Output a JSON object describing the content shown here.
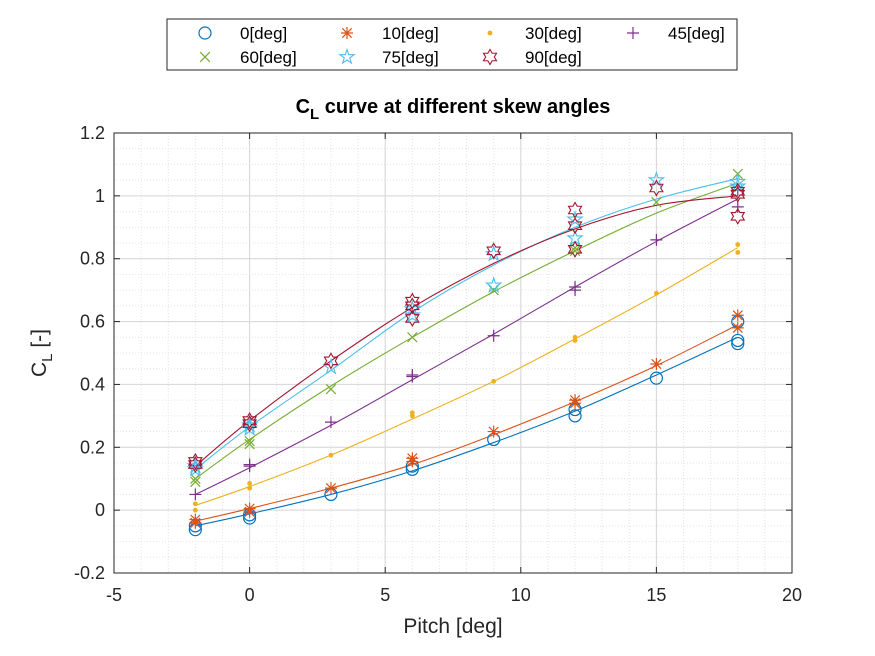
{
  "chart_data": {
    "type": "scatter",
    "title_main": "C",
    "title_sub": "L",
    "title_rest": " curve at different skew angles",
    "xlabel": "Pitch [deg]",
    "ylabel_main": "C",
    "ylabel_sub": "L",
    "ylabel_rest": " [-]",
    "xlim": [
      -5,
      20
    ],
    "ylim": [
      -0.2,
      1.2
    ],
    "xticks": [
      -5,
      0,
      5,
      10,
      15,
      20
    ],
    "yticks": [
      -0.2,
      0,
      0.2,
      0.4,
      0.6,
      0.8,
      1,
      1.2
    ],
    "xtick_labels": [
      "-5",
      "0",
      "5",
      "10",
      "15",
      "20"
    ],
    "ytick_labels": [
      "-0.2",
      "0",
      "0.2",
      "0.4",
      "0.6",
      "0.8",
      "1",
      "1.2"
    ],
    "grid": true,
    "minor_grid": true,
    "legend_position": "top-outside",
    "series": [
      {
        "name": "0[deg]",
        "marker": "circle",
        "color": "#0072BD",
        "points": [
          [
            -2,
            -0.062
          ],
          [
            -2,
            -0.05
          ],
          [
            0,
            -0.025
          ],
          [
            0,
            -0.015
          ],
          [
            3,
            0.05
          ],
          [
            6,
            0.13
          ],
          [
            6,
            0.14
          ],
          [
            9,
            0.225
          ],
          [
            12,
            0.3
          ],
          [
            12,
            0.32
          ],
          [
            15,
            0.42
          ],
          [
            18,
            0.53
          ],
          [
            18,
            0.54
          ],
          [
            18,
            0.6
          ]
        ],
        "fit": [
          [
            -2,
            -0.05
          ],
          [
            0,
            -0.012
          ],
          [
            3,
            0.05
          ],
          [
            6,
            0.125
          ],
          [
            9,
            0.215
          ],
          [
            12,
            0.315
          ],
          [
            15,
            0.43
          ],
          [
            18,
            0.55
          ]
        ]
      },
      {
        "name": "10[deg]",
        "marker": "asterisk",
        "color": "#D95319",
        "points": [
          [
            -2,
            -0.04
          ],
          [
            -2,
            -0.03
          ],
          [
            0,
            0.005
          ],
          [
            0,
            -0.005
          ],
          [
            3,
            0.07
          ],
          [
            6,
            0.155
          ],
          [
            6,
            0.165
          ],
          [
            9,
            0.25
          ],
          [
            12,
            0.34
          ],
          [
            12,
            0.35
          ],
          [
            15,
            0.465
          ],
          [
            18,
            0.58
          ],
          [
            18,
            0.62
          ]
        ],
        "fit": [
          [
            -2,
            -0.035
          ],
          [
            0,
            0.005
          ],
          [
            3,
            0.07
          ],
          [
            6,
            0.145
          ],
          [
            9,
            0.24
          ],
          [
            12,
            0.345
          ],
          [
            15,
            0.46
          ],
          [
            18,
            0.59
          ]
        ]
      },
      {
        "name": "30[deg]",
        "marker": "dot",
        "color": "#EDB120",
        "points": [
          [
            -2,
            0.0
          ],
          [
            -2,
            0.02
          ],
          [
            0,
            0.07
          ],
          [
            0,
            0.085
          ],
          [
            3,
            0.175
          ],
          [
            6,
            0.3
          ],
          [
            6,
            0.31
          ],
          [
            9,
            0.41
          ],
          [
            12,
            0.54
          ],
          [
            12,
            0.55
          ],
          [
            15,
            0.69
          ],
          [
            18,
            0.82
          ],
          [
            18,
            0.845
          ]
        ],
        "fit": [
          [
            -2,
            0.015
          ],
          [
            0,
            0.075
          ],
          [
            3,
            0.175
          ],
          [
            6,
            0.29
          ],
          [
            9,
            0.41
          ],
          [
            12,
            0.545
          ],
          [
            15,
            0.685
          ],
          [
            18,
            0.835
          ]
        ]
      },
      {
        "name": "45[deg]",
        "marker": "plus",
        "color": "#7E2F8E",
        "points": [
          [
            -2,
            0.05
          ],
          [
            0,
            0.14
          ],
          [
            0,
            0.145
          ],
          [
            3,
            0.28
          ],
          [
            6,
            0.425
          ],
          [
            6,
            0.43
          ],
          [
            9,
            0.555
          ],
          [
            12,
            0.7
          ],
          [
            12,
            0.71
          ],
          [
            15,
            0.86
          ],
          [
            18,
            0.965
          ],
          [
            18,
            1.02
          ]
        ],
        "fit": [
          [
            -2,
            0.05
          ],
          [
            0,
            0.135
          ],
          [
            3,
            0.27
          ],
          [
            6,
            0.415
          ],
          [
            9,
            0.56
          ],
          [
            12,
            0.71
          ],
          [
            15,
            0.855
          ],
          [
            18,
            0.99
          ]
        ]
      },
      {
        "name": "60[deg]",
        "marker": "cross",
        "color": "#77AC30",
        "points": [
          [
            -2,
            0.09
          ],
          [
            -2,
            0.1
          ],
          [
            0,
            0.21
          ],
          [
            0,
            0.22
          ],
          [
            3,
            0.385
          ],
          [
            6,
            0.55
          ],
          [
            9,
            0.7
          ],
          [
            12,
            0.825
          ],
          [
            12,
            0.835
          ],
          [
            15,
            0.98
          ],
          [
            18,
            1.07
          ]
        ],
        "fit": [
          [
            -2,
            0.1
          ],
          [
            0,
            0.225
          ],
          [
            3,
            0.395
          ],
          [
            6,
            0.55
          ],
          [
            9,
            0.695
          ],
          [
            12,
            0.825
          ],
          [
            15,
            0.945
          ],
          [
            18,
            1.04
          ]
        ]
      },
      {
        "name": "75[deg]",
        "marker": "pentagram",
        "color": "#4DBEEE",
        "points": [
          [
            -2,
            0.13
          ],
          [
            -2,
            0.14
          ],
          [
            0,
            0.26
          ],
          [
            0,
            0.27
          ],
          [
            3,
            0.455
          ],
          [
            6,
            0.62
          ],
          [
            6,
            0.64
          ],
          [
            9,
            0.715
          ],
          [
            9,
            0.815
          ],
          [
            12,
            0.865
          ],
          [
            12,
            0.925
          ],
          [
            15,
            1.05
          ],
          [
            18,
            1.03
          ],
          [
            18,
            1.045
          ]
        ],
        "fit": [
          [
            -2,
            0.13
          ],
          [
            0,
            0.265
          ],
          [
            3,
            0.445
          ],
          [
            6,
            0.63
          ],
          [
            9,
            0.78
          ],
          [
            12,
            0.9
          ],
          [
            15,
            0.99
          ],
          [
            18,
            1.055
          ]
        ]
      },
      {
        "name": "90[deg]",
        "marker": "hexagram",
        "color": "#A2142F",
        "points": [
          [
            -2,
            0.145
          ],
          [
            -2,
            0.155
          ],
          [
            0,
            0.275
          ],
          [
            0,
            0.285
          ],
          [
            3,
            0.475
          ],
          [
            6,
            0.61
          ],
          [
            6,
            0.65
          ],
          [
            6,
            0.665
          ],
          [
            9,
            0.825
          ],
          [
            12,
            0.83
          ],
          [
            12,
            0.905
          ],
          [
            12,
            0.955
          ],
          [
            15,
            1.025
          ],
          [
            18,
            0.935
          ],
          [
            18,
            1.005
          ],
          [
            18,
            1.015
          ]
        ],
        "fit": [
          [
            -2,
            0.14
          ],
          [
            0,
            0.285
          ],
          [
            3,
            0.475
          ],
          [
            6,
            0.645
          ],
          [
            9,
            0.785
          ],
          [
            12,
            0.895
          ],
          [
            15,
            0.97
          ],
          [
            18,
            1.0
          ]
        ]
      }
    ]
  }
}
